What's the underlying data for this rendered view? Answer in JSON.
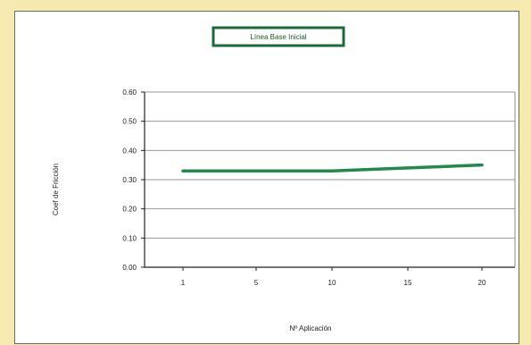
{
  "chart_data": {
    "type": "line",
    "title": "Línea Base Inicial",
    "xlabel": "Nº Aplicación",
    "ylabel": "Coef de Fricción",
    "x_ticks": [
      "1",
      "5",
      "10",
      "15",
      "20"
    ],
    "y_ticks": [
      "0.00",
      "0.10",
      "0.20",
      "0.30",
      "0.40",
      "0.50",
      "0.60"
    ],
    "ylim": [
      0,
      0.6
    ],
    "xlim": [
      1,
      20
    ],
    "grid": true,
    "series": [
      {
        "color": "#1f8a4c",
        "x": [
          1,
          5,
          10,
          15,
          20
        ],
        "values": [
          0.33,
          0.33,
          0.33,
          0.34,
          0.35
        ]
      }
    ],
    "colors": {
      "line": "#1f8a4c",
      "title_border": "#1a6b3a",
      "grid": "#9a9a9a",
      "page_background": "#f6eab0"
    }
  }
}
